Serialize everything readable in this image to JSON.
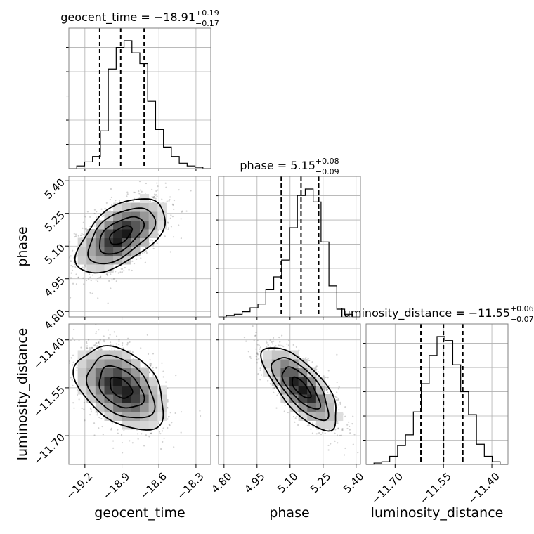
{
  "chart_data": {
    "type": "corner",
    "parameters": [
      {
        "name": "geocent_time",
        "axis_label": "geocent_time",
        "title_main": "geocent_time = −18.91",
        "title_plus": "+0.19",
        "title_minus": "−0.17",
        "range": [
          -19.33,
          -18.18
        ],
        "ticks": [
          -19.2,
          -18.9,
          -18.6,
          -18.3
        ],
        "tick_labels": [
          "−19.2",
          "−18.9",
          "−18.6",
          "−18.3"
        ],
        "quantiles": [
          -19.08,
          -18.91,
          -18.72
        ],
        "hist_counts": [
          0,
          2,
          5,
          9,
          28,
          74,
          90,
          95,
          86,
          78,
          50,
          29,
          16,
          9,
          4,
          2,
          1,
          0
        ]
      },
      {
        "name": "phase",
        "axis_label": "phase",
        "title_main": "phase = 5.15",
        "title_plus": "+0.08",
        "title_minus": "−0.09",
        "range": [
          4.775,
          5.42
        ],
        "ticks": [
          4.8,
          4.95,
          5.1,
          5.25,
          5.4
        ],
        "tick_labels": [
          "4.80",
          "4.95",
          "5.10",
          "5.25",
          "5.40"
        ],
        "quantiles": [
          5.06,
          5.15,
          5.23
        ],
        "hist_counts": [
          0,
          1,
          2,
          4,
          7,
          10,
          21,
          31,
          44,
          69,
          94,
          99,
          89,
          58,
          24,
          6,
          2,
          0
        ]
      },
      {
        "name": "luminosity_distance",
        "axis_label": "luminosity_distance",
        "title_main": "luminosity_distance = −11.55",
        "title_plus": "+0.06",
        "title_minus": "−0.07",
        "range": [
          -11.79,
          -11.35
        ],
        "ticks": [
          -11.7,
          -11.55,
          -11.4
        ],
        "tick_labels": [
          "−11.70",
          "−11.55",
          "−11.40"
        ],
        "quantiles": [
          -11.62,
          -11.55,
          -11.49
        ],
        "hist_counts": [
          0,
          1,
          2,
          6,
          14,
          22,
          39,
          60,
          81,
          95,
          92,
          74,
          54,
          37,
          15,
          6,
          2,
          0
        ]
      }
    ],
    "pairs": [
      {
        "x_param": 0,
        "y_param": 1,
        "mean": [
          -18.91,
          5.15
        ],
        "sd": [
          0.18,
          0.085
        ],
        "correlation": 0.55
      },
      {
        "x_param": 0,
        "y_param": 2,
        "mean": [
          -18.91,
          -11.55
        ],
        "sd": [
          0.18,
          0.065
        ],
        "correlation": -0.4
      },
      {
        "x_param": 1,
        "y_param": 2,
        "mean": [
          5.15,
          -11.55
        ],
        "sd": [
          0.085,
          0.065
        ],
        "correlation": -0.72
      }
    ],
    "grid": true,
    "contour_levels": [
      "0.5-sigma",
      "1-sigma",
      "1.5-sigma",
      "2-sigma"
    ]
  }
}
